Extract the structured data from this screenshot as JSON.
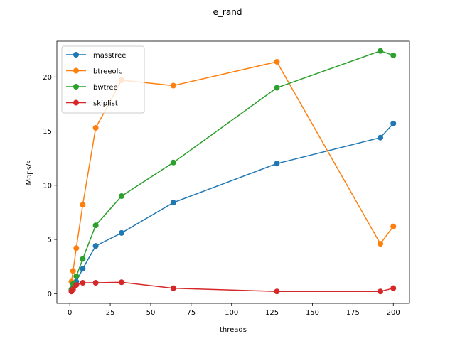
{
  "chart_data": {
    "type": "line",
    "title": "e_rand",
    "xlabel": "threads",
    "ylabel": "Mops/s",
    "xlim": [
      -8,
      210
    ],
    "ylim": [
      -0.9,
      23.3
    ],
    "xticks": [
      0,
      25,
      50,
      75,
      100,
      125,
      150,
      175,
      200
    ],
    "yticks": [
      0,
      5,
      10,
      15,
      20
    ],
    "grid": false,
    "legend_position": "top-left",
    "series": [
      {
        "name": "masstree",
        "color": "#1f77b4",
        "x": [
          1,
          2,
          4,
          8,
          16,
          32,
          64,
          128,
          192,
          200
        ],
        "y": [
          0.3,
          0.6,
          1.1,
          2.3,
          4.4,
          5.6,
          8.4,
          12.0,
          14.4,
          15.7
        ]
      },
      {
        "name": "btreeolc",
        "color": "#ff7f0e",
        "x": [
          1,
          2,
          4,
          8,
          16,
          32,
          64,
          128,
          192,
          200
        ],
        "y": [
          1.1,
          2.1,
          4.2,
          8.2,
          15.3,
          19.7,
          19.2,
          21.4,
          4.6,
          6.2
        ]
      },
      {
        "name": "bwtree",
        "color": "#2ca02c",
        "x": [
          1,
          2,
          4,
          8,
          16,
          32,
          64,
          128,
          192,
          200
        ],
        "y": [
          0.4,
          0.9,
          1.6,
          3.2,
          6.3,
          9.0,
          12.1,
          19.0,
          22.4,
          22.0
        ]
      },
      {
        "name": "skiplist",
        "color": "#d62728",
        "x": [
          1,
          2,
          4,
          8,
          16,
          32,
          64,
          128,
          192,
          200
        ],
        "y": [
          0.2,
          0.4,
          0.8,
          1.0,
          1.0,
          1.05,
          0.5,
          0.2,
          0.2,
          0.5
        ]
      }
    ]
  }
}
